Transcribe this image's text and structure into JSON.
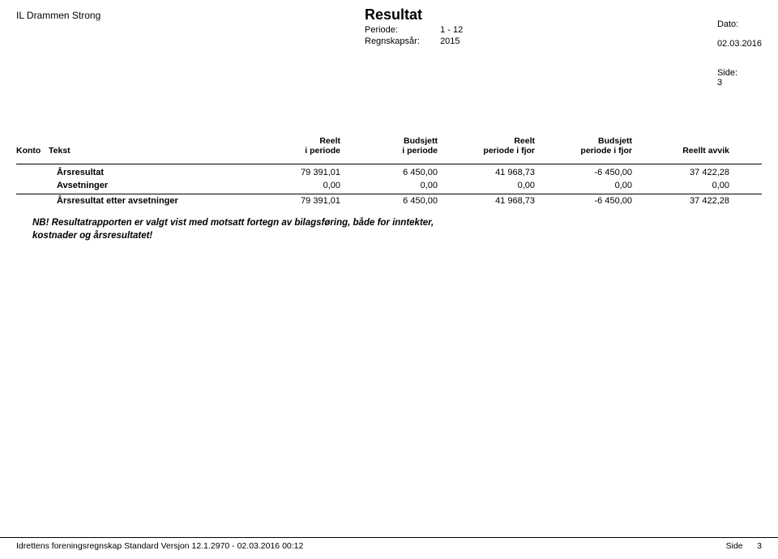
{
  "header": {
    "org_name": "IL Drammen Strong",
    "title": "Resultat",
    "period_label": "Periode:",
    "period_value": "1 -  12",
    "year_label": "Regnskapsår:",
    "year_value": "2015",
    "date_label": "Dato:",
    "date_value": "02.03.2016",
    "page_label": "Side:",
    "page_value": "3"
  },
  "columns": {
    "konto": "Konto",
    "tekst": "Tekst",
    "reelt_periode_l1": "Reelt",
    "reelt_periode_l2": "i periode",
    "budsjett_periode_l1": "Budsjett",
    "budsjett_periode_l2": "i periode",
    "reelt_fjor_l1": "Reelt",
    "reelt_fjor_l2": "periode i fjor",
    "budsjett_fjor_l1": "Budsjett",
    "budsjett_fjor_l2": "periode i fjor",
    "avvik_l1": "Reellt avvik",
    "avvik_l2": ""
  },
  "rows": [
    {
      "label": "Årsresultat",
      "c1": "79 391,01",
      "c2": "6 450,00",
      "c3": "41 968,73",
      "c4": "-6 450,00",
      "c5": "37 422,28"
    },
    {
      "label": "Avsetninger",
      "c1": "0,00",
      "c2": "0,00",
      "c3": "0,00",
      "c4": "0,00",
      "c5": "0,00"
    }
  ],
  "total": {
    "label": "Årsresultat etter avsetninger",
    "c1": "79 391,01",
    "c2": "6 450,00",
    "c3": "41 968,73",
    "c4": "-6 450,00",
    "c5": "37 422,28"
  },
  "note_line1": "NB! Resultatrapporten er valgt vist med motsatt fortegn av bilagsføring, både for inntekter,",
  "note_line2": "kostnader og årsresultatet!",
  "footer": {
    "left": "Idrettens foreningsregnskap Standard  Versjon 12.1.2970 - 02.03.2016 00:12",
    "right_label": "Side",
    "right_value": "3"
  }
}
